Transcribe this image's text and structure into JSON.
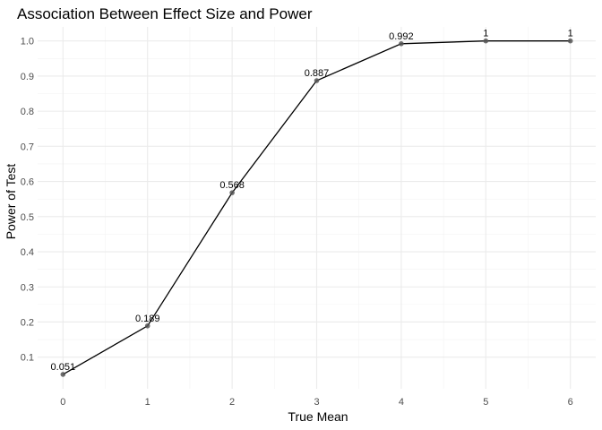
{
  "chart_data": {
    "type": "line",
    "title": "Association Between Effect Size and Power",
    "xlabel": "True Mean",
    "ylabel": "Power of Test",
    "x": [
      0,
      1,
      2,
      3,
      4,
      5,
      6
    ],
    "y": [
      0.051,
      0.189,
      0.568,
      0.887,
      0.992,
      1,
      1
    ],
    "data_labels": [
      "0.051",
      "0.189",
      "0.568",
      "0.887",
      "0.992",
      "1",
      "1"
    ],
    "xlim": [
      -0.3,
      6.3
    ],
    "ylim": [
      0.01,
      1.04
    ],
    "x_ticks": [
      0,
      1,
      2,
      3,
      4,
      5,
      6
    ],
    "x_tick_labels": [
      "0",
      "1",
      "2",
      "3",
      "4",
      "5",
      "6"
    ],
    "y_ticks": [
      0.1,
      0.2,
      0.3,
      0.4,
      0.5,
      0.6,
      0.7,
      0.8,
      0.9,
      1.0
    ],
    "y_tick_labels": [
      "0.1",
      "0.2",
      "0.3",
      "0.4",
      "0.5",
      "0.6",
      "0.7",
      "0.8",
      "0.9",
      "1.0"
    ],
    "grid": true,
    "legend": "none",
    "line_color": "#000000",
    "point_color": "#555555"
  }
}
